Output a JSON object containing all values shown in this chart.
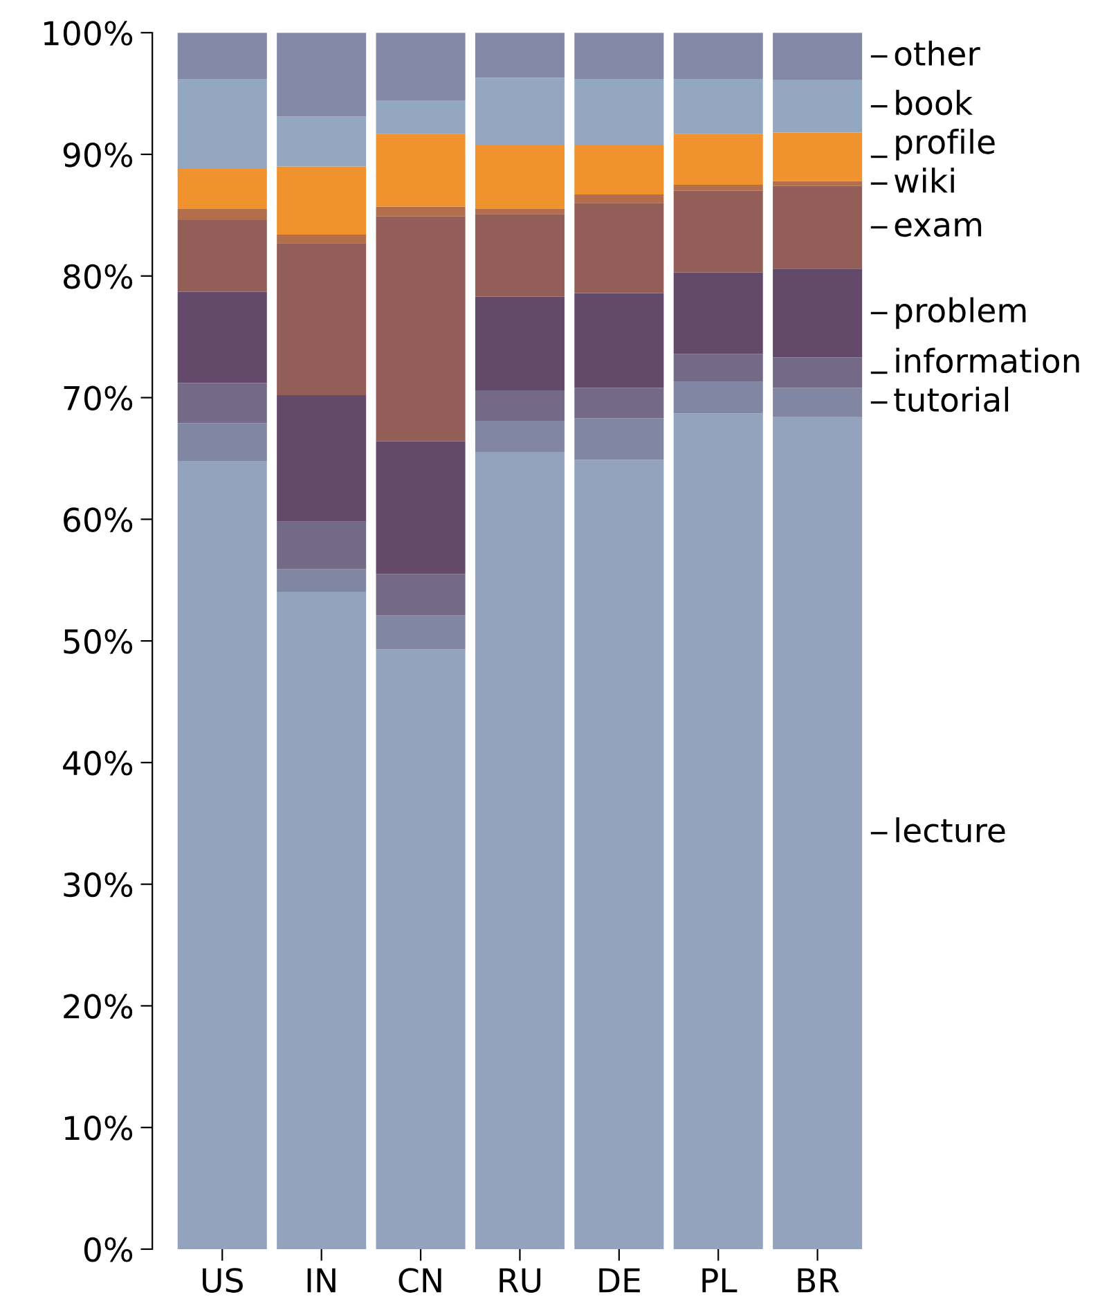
{
  "chart_data": {
    "type": "bar",
    "stacked": true,
    "categories": [
      "US",
      "IN",
      "CN",
      "RU",
      "DE",
      "PL",
      "BR"
    ],
    "series": [
      {
        "name": "lecture",
        "color": "#94a3bd",
        "values": [
          64.8,
          54.0,
          49.3,
          65.5,
          64.9,
          68.7,
          68.4
        ]
      },
      {
        "name": "tutorial",
        "color": "#8186a3",
        "values": [
          3.1,
          1.9,
          2.8,
          2.6,
          3.4,
          2.6,
          2.4
        ]
      },
      {
        "name": "information",
        "color": "#746a87",
        "values": [
          3.3,
          3.9,
          3.4,
          2.5,
          2.5,
          2.3,
          2.5
        ]
      },
      {
        "name": "problem",
        "color": "#634a6b",
        "values": [
          7.5,
          10.4,
          10.9,
          7.7,
          7.8,
          6.7,
          7.3
        ]
      },
      {
        "name": "exam",
        "color": "#945e58",
        "values": [
          5.9,
          12.5,
          18.5,
          6.8,
          7.4,
          6.7,
          6.8
        ]
      },
      {
        "name": "wiki",
        "color": "#b36e4c",
        "values": [
          0.9,
          0.7,
          0.8,
          0.4,
          0.7,
          0.5,
          0.4
        ]
      },
      {
        "name": "profile",
        "color": "#f0922e",
        "values": [
          3.3,
          5.6,
          6.0,
          5.3,
          4.1,
          4.2,
          4.0
        ]
      },
      {
        "name": "book",
        "color": "#93a8c0",
        "values": [
          7.4,
          4.1,
          2.7,
          5.5,
          5.4,
          4.5,
          4.3
        ]
      },
      {
        "name": "other",
        "color": "#8388a6",
        "values": [
          3.8,
          6.9,
          5.6,
          3.7,
          3.8,
          3.8,
          3.9
        ]
      }
    ],
    "ylim": [
      0,
      100
    ],
    "yticks": [
      {
        "value": 0,
        "label": "0%"
      },
      {
        "value": 10,
        "label": "10%"
      },
      {
        "value": 20,
        "label": "20%"
      },
      {
        "value": 30,
        "label": "30%"
      },
      {
        "value": 40,
        "label": "40%"
      },
      {
        "value": 50,
        "label": "50%"
      },
      {
        "value": 60,
        "label": "60%"
      },
      {
        "value": 70,
        "label": "70%"
      },
      {
        "value": 80,
        "label": "80%"
      },
      {
        "value": 90,
        "label": "90%"
      },
      {
        "value": 100,
        "label": "100%"
      }
    ],
    "grid": false,
    "legend": "right"
  }
}
